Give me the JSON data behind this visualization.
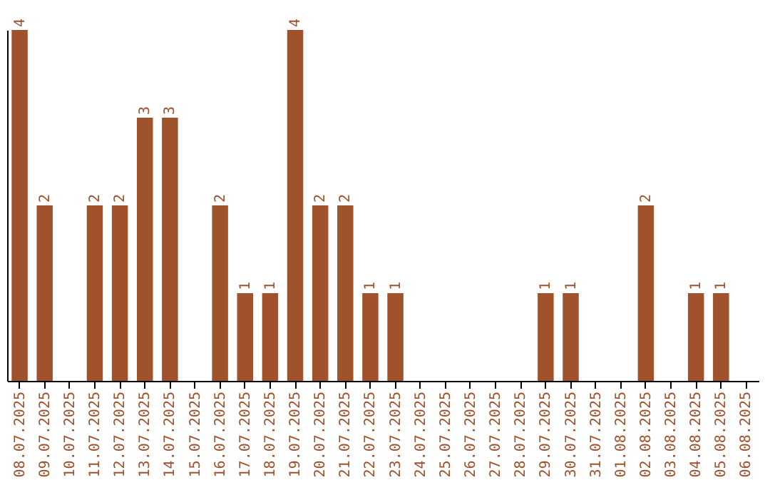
{
  "chart_data": {
    "type": "bar",
    "categories": [
      "08.07.2025",
      "09.07.2025",
      "10.07.2025",
      "11.07.2025",
      "12.07.2025",
      "13.07.2025",
      "14.07.2025",
      "15.07.2025",
      "16.07.2025",
      "17.07.2025",
      "18.07.2025",
      "19.07.2025",
      "20.07.2025",
      "21.07.2025",
      "22.07.2025",
      "23.07.2025",
      "24.07.2025",
      "25.07.2025",
      "26.07.2025",
      "27.07.2025",
      "28.07.2025",
      "29.07.2025",
      "30.07.2025",
      "31.07.2025",
      "01.08.2025",
      "02.08.2025",
      "03.08.2025",
      "04.08.2025",
      "05.08.2025",
      "06.08.2025"
    ],
    "values": [
      4,
      2,
      0,
      2,
      2,
      3,
      3,
      0,
      2,
      1,
      1,
      4,
      2,
      2,
      1,
      1,
      0,
      0,
      0,
      0,
      0,
      1,
      1,
      0,
      0,
      2,
      0,
      1,
      1,
      0
    ],
    "value_labels": [
      "4",
      "2",
      null,
      "2",
      "2",
      "3",
      "3",
      null,
      "2",
      "1",
      "1",
      "4",
      "2",
      "2",
      "1",
      "1",
      null,
      null,
      null,
      null,
      null,
      "1",
      "1",
      null,
      null,
      "2",
      null,
      "1",
      "1",
      null
    ],
    "color": "#a0522d",
    "ylim": [
      0,
      4
    ],
    "tick_labels": "x",
    "grid": false
  }
}
